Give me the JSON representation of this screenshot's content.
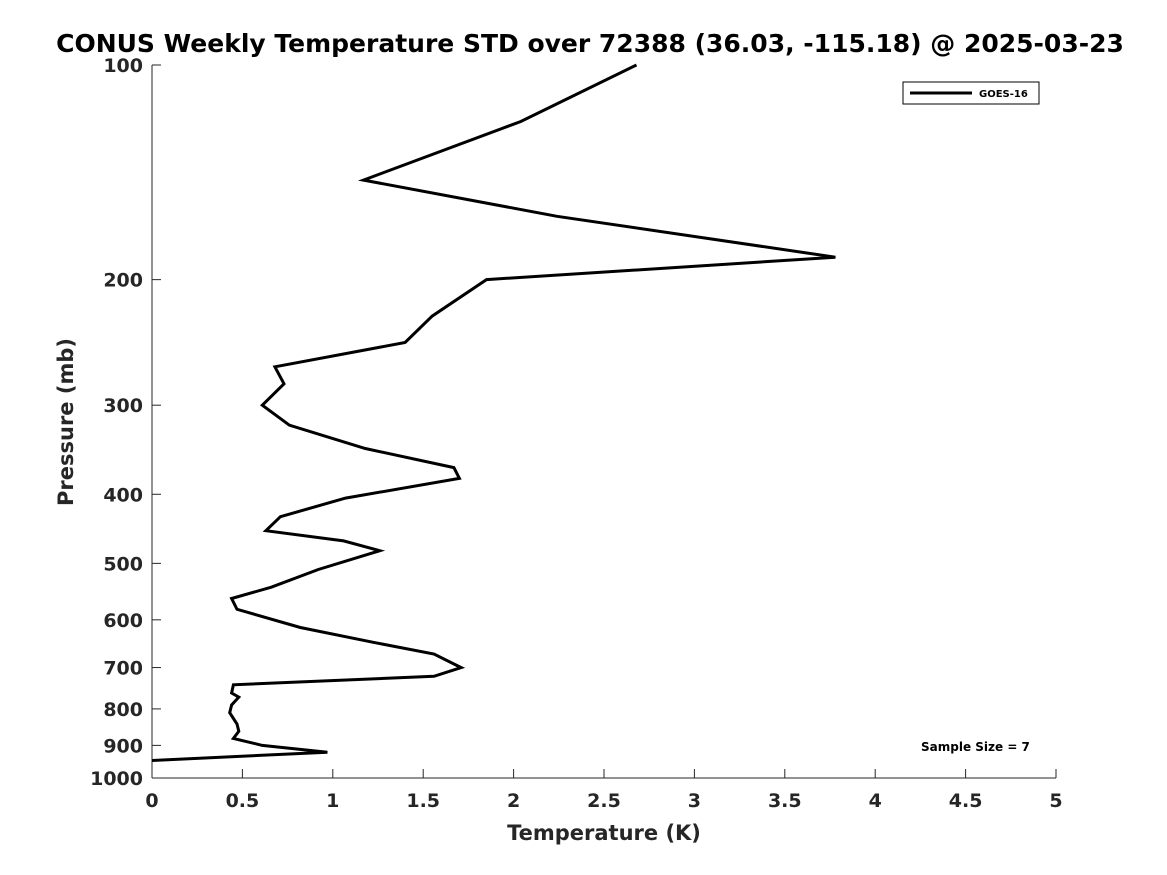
{
  "chart_data": {
    "type": "line",
    "title": "CONUS Weekly Temperature STD over 72388 (36.03, -115.18) @ 2025-03-23",
    "xlabel": "Temperature (K)",
    "ylabel": "Pressure (mb)",
    "xlim": [
      0,
      5
    ],
    "ylim": [
      100,
      1000
    ],
    "y_scale": "log",
    "y_reversed": true,
    "grid": false,
    "x_ticks": [
      0,
      0.5,
      1,
      1.5,
      2,
      2.5,
      3,
      3.5,
      4,
      4.5,
      5
    ],
    "x_tick_labels": [
      "0",
      "0.5",
      "1",
      "1.5",
      "2",
      "2.5",
      "3",
      "3.5",
      "4",
      "4.5",
      "5"
    ],
    "y_ticks": [
      100,
      200,
      300,
      400,
      500,
      600,
      700,
      800,
      900,
      1000
    ],
    "y_tick_labels": [
      "100",
      "200",
      "300",
      "400",
      "500",
      "600",
      "700",
      "800",
      "900",
      "1000"
    ],
    "legend_position": "top-right",
    "series": [
      {
        "name": "GOES-16",
        "color": "#000000",
        "x": [
          2.68,
          2.04,
          1.17,
          2.24,
          3.78,
          1.85,
          1.55,
          1.4,
          0.68,
          0.73,
          0.61,
          0.76,
          1.18,
          1.67,
          1.7,
          1.07,
          0.71,
          0.63,
          1.06,
          1.26,
          0.92,
          0.66,
          0.44,
          0.47,
          0.82,
          1.22,
          1.56,
          1.71,
          1.56,
          0.45,
          0.44,
          0.48,
          0.44,
          0.43,
          0.47,
          0.48,
          0.45,
          0.61,
          0.97,
          0.0
        ],
        "y": [
          100,
          120,
          145,
          163,
          186,
          200,
          225,
          245,
          265,
          280,
          300,
          320,
          345,
          367,
          380,
          405,
          430,
          450,
          465,
          480,
          510,
          540,
          560,
          580,
          615,
          645,
          670,
          700,
          720,
          740,
          760,
          770,
          790,
          810,
          840,
          860,
          880,
          900,
          920,
          945
        ]
      }
    ],
    "annotations": [
      "Sample Size = 7"
    ]
  }
}
